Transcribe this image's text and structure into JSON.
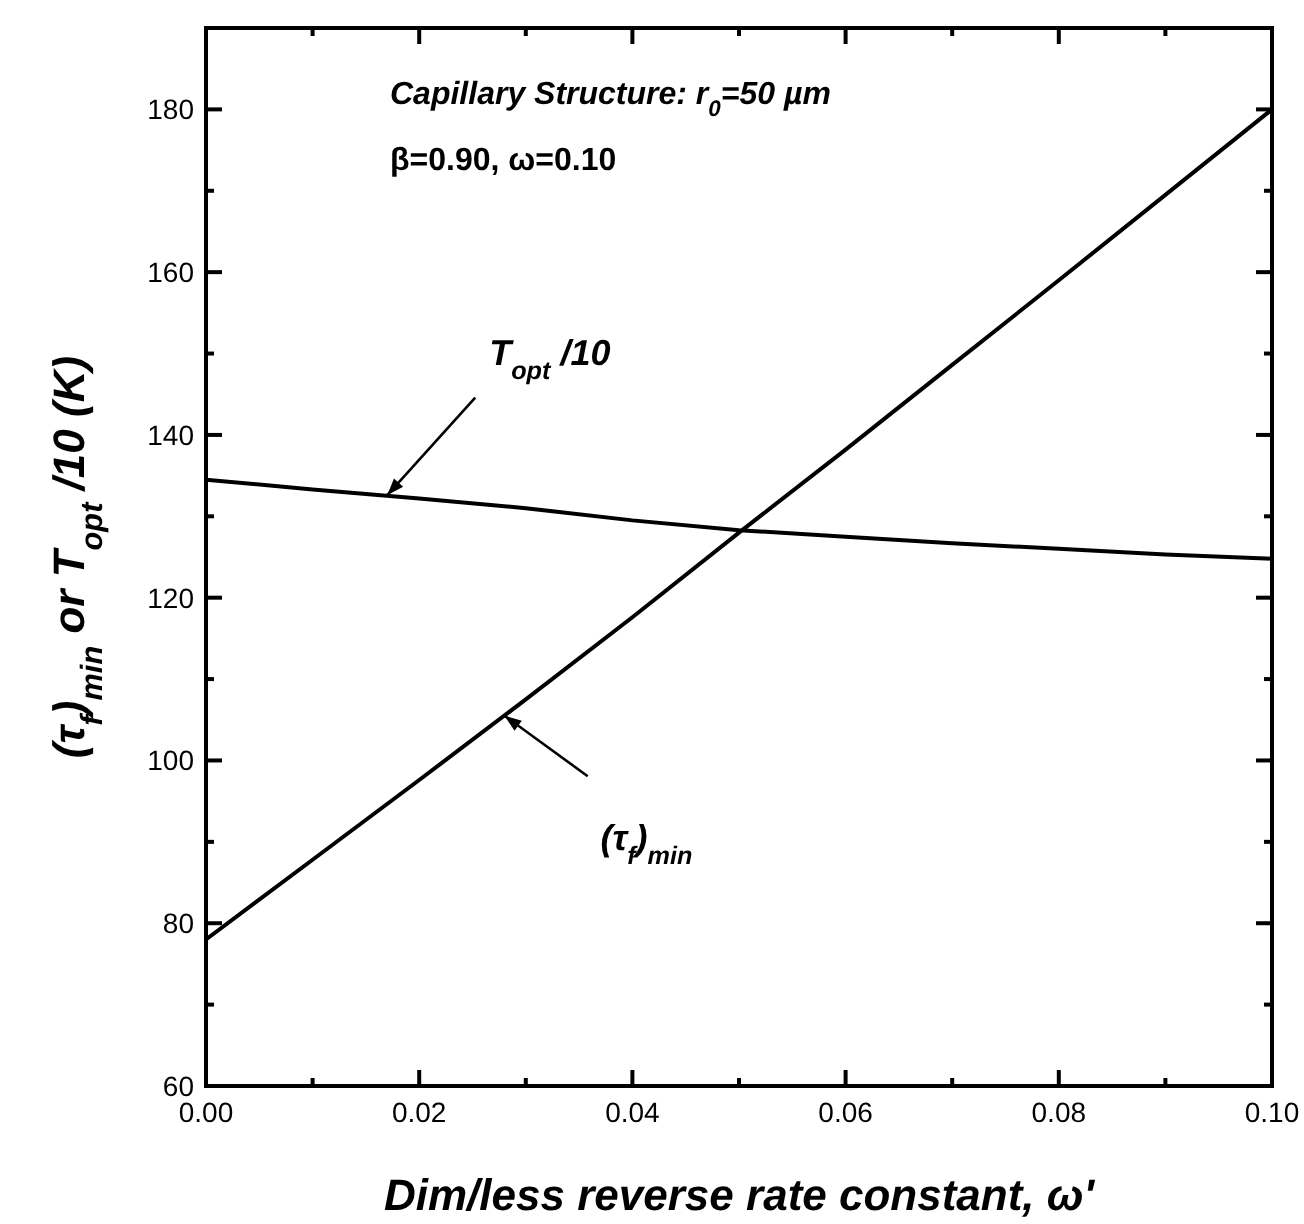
{
  "chart_data": {
    "type": "line",
    "xlabel": "Dim/less reverse rate constant, ω'",
    "ylabel": "(τ$_{f}$)$_{min}$ or T$_{opt}$ /10 (K)",
    "xlim": [
      0,
      0.1
    ],
    "ylim": [
      60,
      190
    ],
    "xticks": [
      {
        "value": 0,
        "label": "0.00"
      },
      {
        "value": 0.01,
        "label": null
      },
      {
        "value": 0.02,
        "label": "0.02"
      },
      {
        "value": 0.03,
        "label": null
      },
      {
        "value": 0.04,
        "label": "0.04"
      },
      {
        "value": 0.05,
        "label": null
      },
      {
        "value": 0.06,
        "label": "0.06"
      },
      {
        "value": 0.07,
        "label": null
      },
      {
        "value": 0.08,
        "label": "0.08"
      },
      {
        "value": 0.09,
        "label": null
      },
      {
        "value": 0.1,
        "label": "0.10"
      }
    ],
    "yticks": [
      60,
      {
        "value": 70,
        "label": null
      },
      80,
      {
        "value": 90,
        "label": null
      },
      100,
      {
        "value": 110,
        "label": null
      },
      120,
      {
        "value": 130,
        "label": null
      },
      140,
      {
        "value": 150,
        "label": null
      },
      160,
      {
        "value": 170,
        "label": null
      },
      180
    ],
    "grid": false,
    "marker": "none",
    "line_style": "solid",
    "x": [
      0,
      0.01,
      0.02,
      0.03,
      0.04,
      0.05,
      0.06,
      0.07,
      0.08,
      0.09,
      0.1
    ],
    "series": [
      {
        "color": "#000000",
        "values": [
          134.5,
          133.3,
          132.2,
          131,
          129.5,
          128.3,
          127.5,
          126.7,
          126,
          125.3,
          124.8
        ]
      },
      {
        "color": "#000000",
        "values": [
          78,
          87.8,
          97.6,
          107.5,
          117.6,
          128,
          138.2,
          148.6,
          159,
          169.5,
          180
        ]
      }
    ],
    "annotations": [
      "Capillary Structure: r$_{0}$=50 µm",
      "β=0.90, ω=0.10",
      {
        "text": "T$_{opt}$ /10",
        "x": 0.017,
        "y": 132.6
      },
      {
        "text": "(τ$_{f}$)$_{min}$",
        "x": 0.028,
        "y": 105.5
      }
    ]
  }
}
